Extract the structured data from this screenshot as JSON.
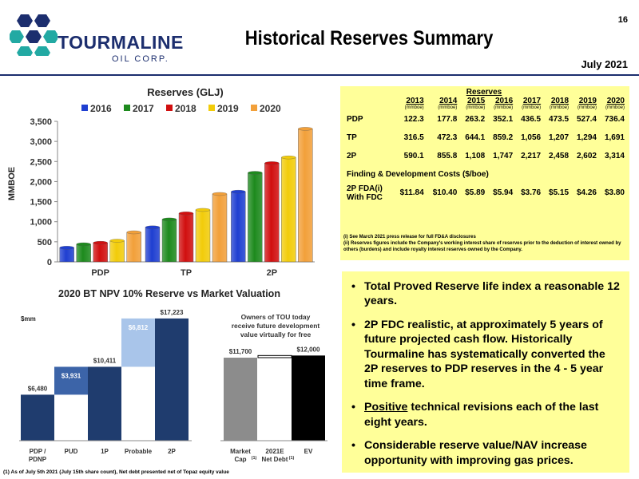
{
  "header": {
    "company_name": "TOURMALINE",
    "company_sub": "OIL CORP.",
    "title": "Historical Reserves Summary",
    "date": "July 2021",
    "page_number": "16"
  },
  "colors": {
    "navy": "#1c2e6e",
    "panel_yellow": "#ffff99",
    "s2016": "#1f3fd1",
    "s2017": "#1d8a1d",
    "s2018": "#d10f0f",
    "s2019": "#f2cc0a",
    "s2020": "#f2a03a",
    "npv_dark": "#1f3c6e",
    "npv_mid": "#3c64a8",
    "npv_light": "#a9c5ea",
    "mc_grey": "#8c8c8c"
  },
  "chart_data": [
    {
      "type": "bar",
      "title": "Reserves (GLJ)",
      "ylabel": "MMBOE",
      "xlabel": "",
      "categories": [
        "PDP",
        "TP",
        "2P"
      ],
      "ylim": [
        0,
        3500
      ],
      "yticks": [
        "0",
        "500",
        "1,000",
        "1,500",
        "2,000",
        "2,500",
        "3,000",
        "3,500"
      ],
      "legend_position": "top",
      "grid": false,
      "series": [
        {
          "name": "2016",
          "values": [
            352,
            859,
            1747
          ]
        },
        {
          "name": "2017",
          "values": [
            437,
            1056,
            2217
          ]
        },
        {
          "name": "2018",
          "values": [
            474,
            1207,
            2458
          ]
        },
        {
          "name": "2019",
          "values": [
            527,
            1294,
            2602
          ]
        },
        {
          "name": "2020",
          "values": [
            736,
            1691,
            3314
          ]
        }
      ]
    },
    {
      "type": "bar",
      "title": "2020 BT NPV 10% Reserve vs Market Valuation",
      "ylabel": "$mm",
      "xlabel": "",
      "ylim": [
        0,
        18000
      ],
      "grid": false,
      "annotation": "Owners of TOU today receive future development value virtually for free",
      "bars": [
        {
          "category": "PDP / PDNP",
          "base": 0,
          "value": 6480,
          "label": "$6,480"
        },
        {
          "category": "PUD",
          "base": 6480,
          "value": 3931,
          "label": "$3,931"
        },
        {
          "category": "1P",
          "base": 0,
          "value": 10411,
          "label": "$10,411"
        },
        {
          "category": "Probable",
          "base": 10411,
          "value": 6812,
          "label": "$6,812"
        },
        {
          "category": "2P",
          "base": 0,
          "value": 17223,
          "label": "$17,223"
        },
        {
          "category": "Market Cap",
          "base": 0,
          "value": 11700,
          "label": "$11,700"
        },
        {
          "category": "2021E Net Debt",
          "base": 11700,
          "value": 300,
          "label": ""
        },
        {
          "category": "EV",
          "base": 0,
          "value": 12000,
          "label": "$12,000"
        }
      ],
      "category_superscripts": {
        "Market Cap": "(1)",
        "2021E Net Debt": "(1)"
      }
    }
  ],
  "reserves_table": {
    "title": "Reserves",
    "years": [
      "2013",
      "2014",
      "2015",
      "2016",
      "2017",
      "2018",
      "2019",
      "2020"
    ],
    "unit": "(mmboe)",
    "rows": [
      {
        "label": "PDP",
        "values": [
          "122.3",
          "177.8",
          "263.2",
          "352.1",
          "436.5",
          "473.5",
          "527.4",
          "736.4"
        ]
      },
      {
        "label": "TP",
        "values": [
          "316.5",
          "472.3",
          "644.1",
          "859.2",
          "1,056",
          "1,207",
          "1,294",
          "1,691"
        ]
      },
      {
        "label": "2P",
        "values": [
          "590.1",
          "855.8",
          "1,108",
          "1,747",
          "2,217",
          "2,458",
          "2,602",
          "3,314"
        ]
      }
    ],
    "fd_title": "Finding & Development Costs ($/boe)",
    "fd_label_1": "2P FDA(i)",
    "fd_label_2": "With FDC",
    "fd_values": [
      "$11.84",
      "$10.40",
      "$5.89",
      "$5.94",
      "$3.76",
      "$5.15",
      "$4.26",
      "$3.80"
    ],
    "note_1": "(i)   See March 2021 press release for full FD&A disclosures",
    "note_2": "(ii)  Reserves figures include the Company's working interest share of reserves prior to the deduction of interest owned by others (burdens) and include royalty interest reserves owned by the Company."
  },
  "bullets": [
    {
      "text": "Total Proved Reserve life index a reasonable 12 years."
    },
    {
      "text": "2P FDC realistic, at approximately 5 years of future projected cash flow.  Historically Tourmaline has systematically converted the 2P reserves to PDP reserves in the 4 - 5 year time frame."
    },
    {
      "emph": "Positive",
      "rest": " technical revisions each of the last eight years."
    },
    {
      "text": "Considerable reserve value/NAV increase opportunity with improving gas prices."
    }
  ],
  "footnote": "(1) As of July 5th 2021 (July 15th share count), Net debt presented net of Topaz equity value"
}
